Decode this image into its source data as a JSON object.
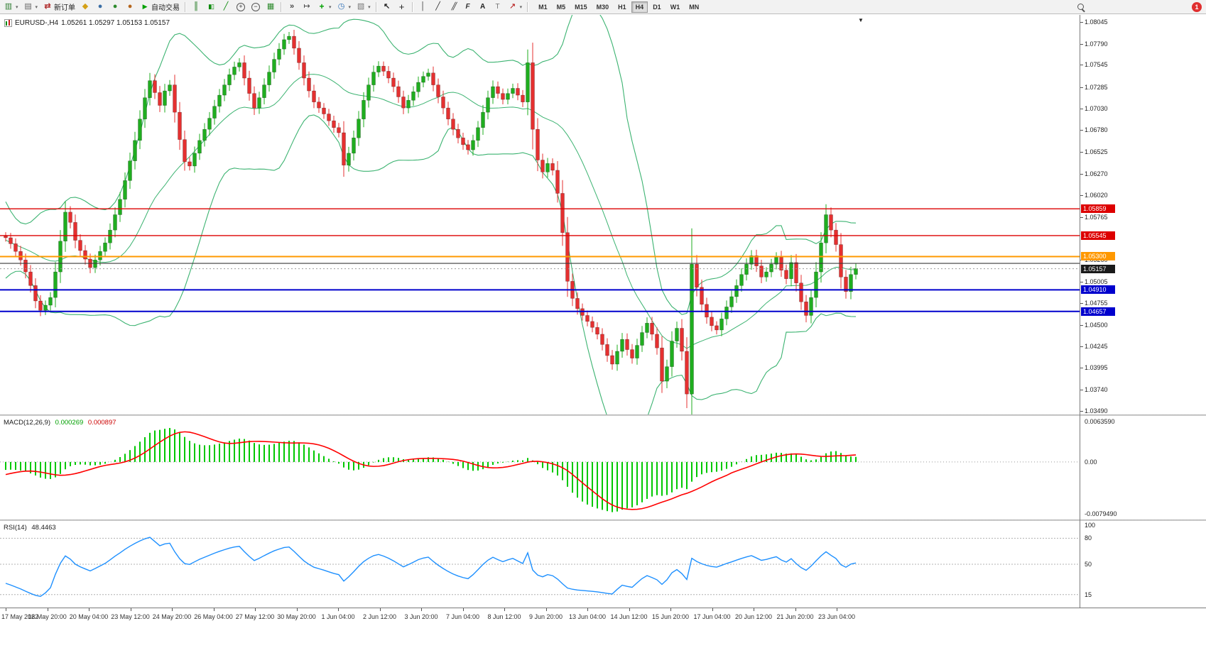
{
  "toolbar": {
    "new_order": "新订单",
    "autotrading": "自动交易",
    "timeframes": [
      "M1",
      "M5",
      "M15",
      "M30",
      "H1",
      "H4",
      "D1",
      "W1",
      "MN"
    ],
    "active_timeframe": "H4",
    "notification": "1"
  },
  "chart": {
    "symbol_period": "EURUSD-,H4",
    "ohlc": "1.05261 1.05297 1.05153 1.05157"
  },
  "macd_panel": {
    "label": "MACD(12,26,9)",
    "value_main": "0.000269",
    "value_signal": "0.000897",
    "axis_top": "0.0063590",
    "axis_zero": "0.00",
    "axis_bottom": "-0.0079490"
  },
  "rsi_panel": {
    "label": "RSI(14)",
    "value": "48.4463",
    "axis_top_label": "100",
    "levels": [
      80,
      50,
      15
    ]
  },
  "price_axis": {
    "ticks": [
      "1.08045",
      "1.07790",
      "1.07545",
      "1.07285",
      "1.07030",
      "1.06780",
      "1.06525",
      "1.06270",
      "1.06020",
      "1.05765",
      "1.05260",
      "1.05005",
      "1.04755",
      "1.04500",
      "1.04245",
      "1.03995",
      "1.03740",
      "1.03490"
    ],
    "badges": [
      {
        "text": "1.05859",
        "price": 1.05859,
        "color": "#dd0000"
      },
      {
        "text": "1.05545",
        "price": 1.05545,
        "color": "#dd0000"
      },
      {
        "text": "1.05300",
        "price": 1.053,
        "color": "#ff9800"
      },
      {
        "text": "1.05157",
        "price": 1.05157,
        "color": "#1a1a1a"
      },
      {
        "text": "1.04910",
        "price": 1.0491,
        "color": "#0000cd"
      },
      {
        "text": "1.04657",
        "price": 1.04657,
        "color": "#0000cd"
      }
    ]
  },
  "time_axis": [
    "17 May 2022",
    "18 May 20:00",
    "20 May 04:00",
    "23 May 12:00",
    "24 May 20:00",
    "26 May 04:00",
    "27 May 12:00",
    "30 May 20:00",
    "1 Jun 04:00",
    "2 Jun 12:00",
    "3 Jun 20:00",
    "7 Jun 04:00",
    "8 Jun 12:00",
    "9 Jun 20:00",
    "13 Jun 04:00",
    "14 Jun 12:00",
    "15 Jun 20:00",
    "17 Jun 04:00",
    "20 Jun 12:00",
    "21 Jun 20:00",
    "23 Jun 04:00"
  ],
  "colors": {
    "bull": "#1fae1f",
    "bear": "#e53030",
    "band": "#3cb371",
    "macd_hist": "#00c800",
    "macd_signal": "#ff0000",
    "rsi_line": "#1e90ff",
    "level_dash": "#b0b0b0"
  },
  "chart_data": {
    "type": "candlestick",
    "symbol": "EURUSD",
    "period": "H4",
    "price_top": 1.0813,
    "price_bottom": 1.0345,
    "warmup_closes": [
      1.062,
      1.0605,
      1.059,
      1.0575,
      1.0562,
      1.055,
      1.054,
      1.0532,
      1.0526,
      1.0522,
      1.052,
      1.0522,
      1.0527,
      1.0534,
      1.0543,
      1.0553,
      1.056,
      1.0562,
      1.0558,
      1.0554
    ],
    "closes": [
      1.0552,
      1.0545,
      1.0536,
      1.0526,
      1.0512,
      1.0496,
      1.0478,
      1.0467,
      1.0473,
      1.0482,
      1.0512,
      1.0548,
      1.0582,
      1.057,
      1.0549,
      1.0537,
      1.0527,
      1.0517,
      1.0526,
      1.0536,
      1.0546,
      1.0561,
      1.0579,
      1.0597,
      1.0619,
      1.0642,
      1.0666,
      1.0691,
      1.0716,
      1.0736,
      1.0722,
      1.0707,
      1.0724,
      1.0731,
      1.0699,
      1.0667,
      1.0641,
      1.0636,
      1.0651,
      1.0666,
      1.0679,
      1.0692,
      1.0706,
      1.0719,
      1.0731,
      1.0743,
      1.0752,
      1.0757,
      1.0739,
      1.0721,
      1.0704,
      1.0716,
      1.0731,
      1.0746,
      1.0761,
      1.0773,
      1.0784,
      1.0788,
      1.0774,
      1.0757,
      1.0739,
      1.0724,
      1.0711,
      1.0704,
      1.0697,
      1.0689,
      1.0681,
      1.0675,
      1.0637,
      1.0651,
      1.0669,
      1.0691,
      1.0713,
      1.0731,
      1.0746,
      1.0753,
      1.0747,
      1.0739,
      1.0729,
      1.0717,
      1.0704,
      1.0713,
      1.0723,
      1.0734,
      1.0741,
      1.0745,
      1.0731,
      1.0717,
      1.0704,
      1.0691,
      1.0679,
      1.0669,
      1.0661,
      1.0655,
      1.0666,
      1.0681,
      1.0699,
      1.0716,
      1.0729,
      1.0721,
      1.0714,
      1.0721,
      1.0727,
      1.0719,
      1.0711,
      1.0757,
      1.0679,
      1.0643,
      1.0629,
      1.0639,
      1.0631,
      1.0604,
      1.0558,
      1.0501,
      1.0481,
      1.0469,
      1.0461,
      1.0454,
      1.0447,
      1.0439,
      1.0427,
      1.0414,
      1.0404,
      1.0419,
      1.0433,
      1.0421,
      1.0411,
      1.0426,
      1.0441,
      1.0452,
      1.0439,
      1.0423,
      1.0384,
      1.0401,
      1.0431,
      1.0446,
      1.0419,
      1.0369,
      1.0521,
      1.0494,
      1.0474,
      1.0459,
      1.0449,
      1.0444,
      1.0457,
      1.0471,
      1.0483,
      1.0496,
      1.0509,
      1.0521,
      1.0531,
      1.0519,
      1.0506,
      1.0512,
      1.0521,
      1.0529,
      1.0514,
      1.0504,
      1.0523,
      1.0499,
      1.0477,
      1.0461,
      1.0482,
      1.0512,
      1.0546,
      1.0579,
      1.0561,
      1.0544,
      1.0506,
      1.0489,
      1.0509,
      1.0516
    ],
    "hlines": [
      {
        "price": 1.05859,
        "color": "#dd0000",
        "width": 1.4,
        "dash": ""
      },
      {
        "price": 1.05545,
        "color": "#dd0000",
        "width": 1.4,
        "dash": ""
      },
      {
        "price": 1.053,
        "color": "#ff9800",
        "width": 2,
        "dash": ""
      },
      {
        "price": 1.0522,
        "color": "#3a3a3a",
        "width": 1.2,
        "dash": ""
      },
      {
        "price": 1.05157,
        "color": "#999999",
        "width": 1,
        "dash": "2,3"
      },
      {
        "price": 1.0491,
        "color": "#0000cd",
        "width": 2,
        "dash": ""
      },
      {
        "price": 1.04657,
        "color": "#0000cd",
        "width": 2,
        "dash": ""
      }
    ],
    "bollinger": {
      "period": 20,
      "deviation": 2
    },
    "macd": {
      "fast": 12,
      "slow": 26,
      "signal": 9,
      "scale_top": 0.0068,
      "scale_bottom": -0.0085
    },
    "rsi": {
      "period": 14
    }
  }
}
